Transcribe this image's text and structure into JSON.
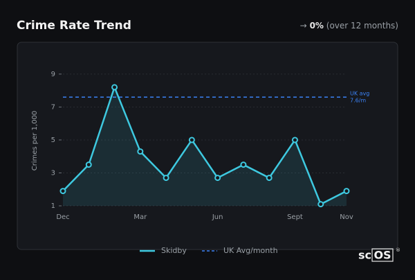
{
  "header": {
    "title": "Crime Rate Trend",
    "change_arrow": "→",
    "change": "0%",
    "period": "(over 12 months)"
  },
  "chart_data": {
    "type": "line",
    "y_label": "Crimes per 1,000",
    "categories": [
      "Dec",
      null,
      null,
      "Mar",
      null,
      null,
      "Jun",
      null,
      null,
      "Sept",
      null,
      "Nov"
    ],
    "series": [
      {
        "name": "Skidby",
        "color": "#3ec9e0",
        "values": [
          1.9,
          3.5,
          8.2,
          4.3,
          2.7,
          5.0,
          2.7,
          3.5,
          2.7,
          5.0,
          1.1,
          1.9
        ]
      }
    ],
    "reference": {
      "name": "UK Avg/month",
      "label": "UK avg",
      "value": 7.6,
      "value_label": "7.6/m",
      "color": "#3b82f6"
    },
    "ylim": [
      1,
      9.5
    ],
    "yticks": [
      1,
      3,
      5,
      7,
      9
    ],
    "grid": true
  },
  "logo": {
    "prefix": "sc",
    "boxed": "OS",
    "mark": "®"
  }
}
